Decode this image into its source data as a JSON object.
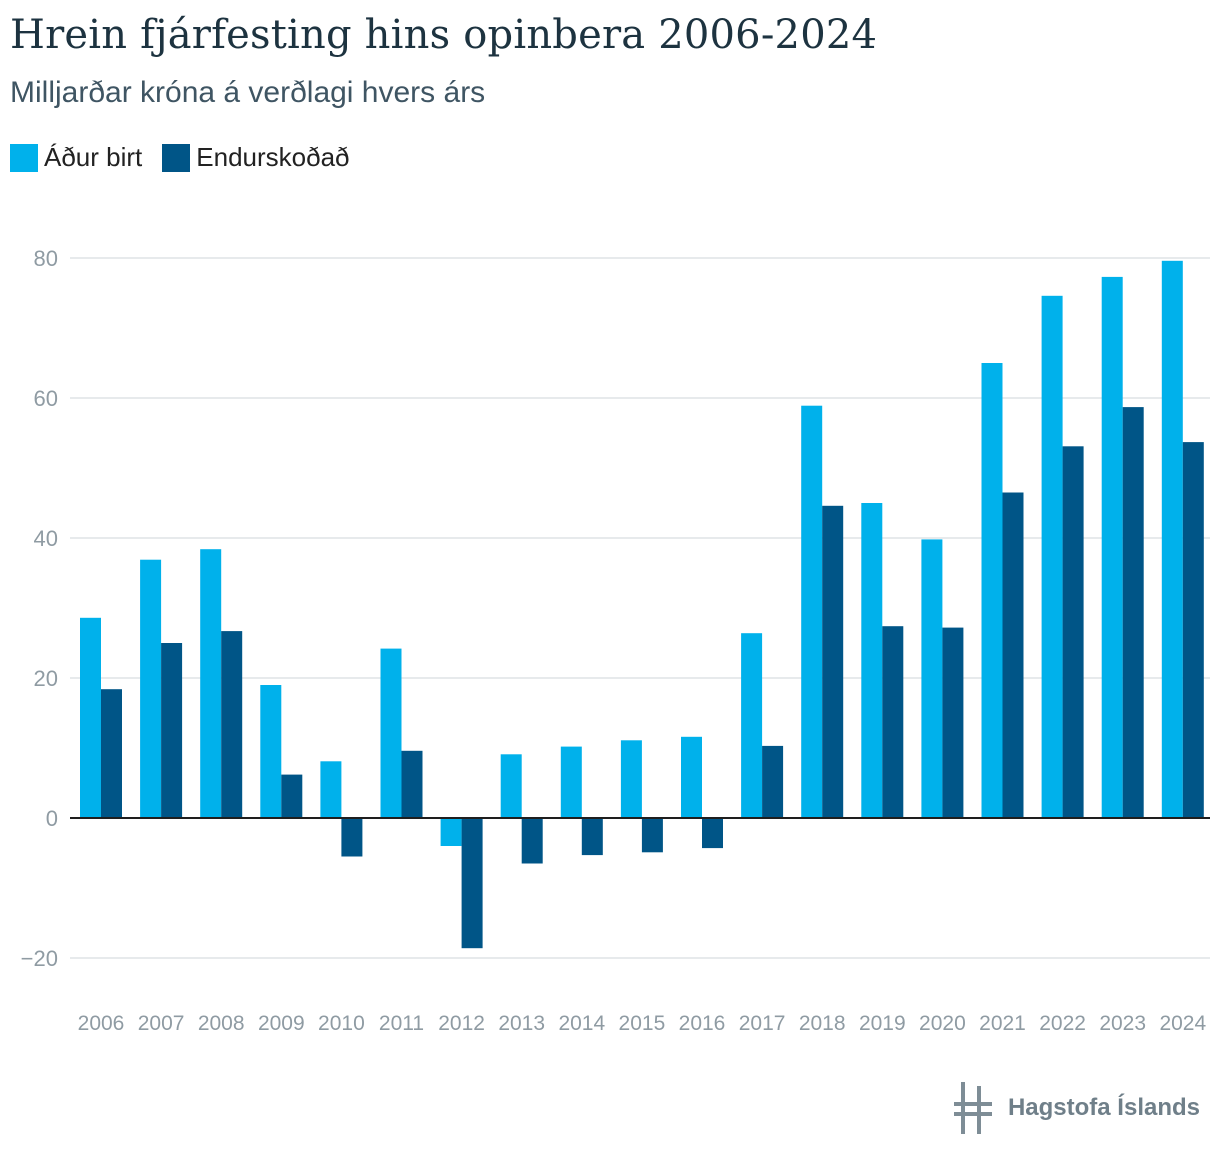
{
  "chart_data": {
    "type": "bar",
    "title": "Hrein fjárfesting hins opinbera 2006-2024",
    "subtitle": "Milljarðar króna á verðlagi hvers árs",
    "xlabel": "",
    "ylabel": "",
    "ylim": [
      -20,
      80
    ],
    "yticks": [
      -20,
      0,
      20,
      40,
      60,
      80
    ],
    "ytick_labels": [
      "−20",
      "0",
      "20",
      "40",
      "60",
      "80"
    ],
    "grid": true,
    "legend_position": "top-left",
    "categories": [
      "2006",
      "2007",
      "2008",
      "2009",
      "2010",
      "2011",
      "2012",
      "2013",
      "2014",
      "2015",
      "2016",
      "2017",
      "2018",
      "2019",
      "2020",
      "2021",
      "2022",
      "2023",
      "2024"
    ],
    "series": [
      {
        "name": "Áður birt",
        "color": "#00b1eb",
        "values": [
          28.6,
          36.9,
          38.4,
          19.0,
          8.1,
          24.2,
          -4.0,
          9.1,
          10.2,
          11.1,
          11.6,
          26.4,
          58.9,
          45.0,
          39.8,
          65.0,
          74.6,
          77.3,
          79.6
        ]
      },
      {
        "name": "Endurskoðað",
        "color": "#005587",
        "values": [
          18.4,
          25.0,
          26.7,
          6.2,
          -5.5,
          9.6,
          -18.6,
          -6.5,
          -5.3,
          -4.9,
          -4.3,
          10.3,
          44.6,
          27.4,
          27.2,
          46.5,
          53.1,
          58.7,
          53.7
        ]
      }
    ]
  },
  "branding": {
    "logo_text": "Hagstofa Íslands",
    "logo_icon": "hagstofa-logo-icon"
  }
}
